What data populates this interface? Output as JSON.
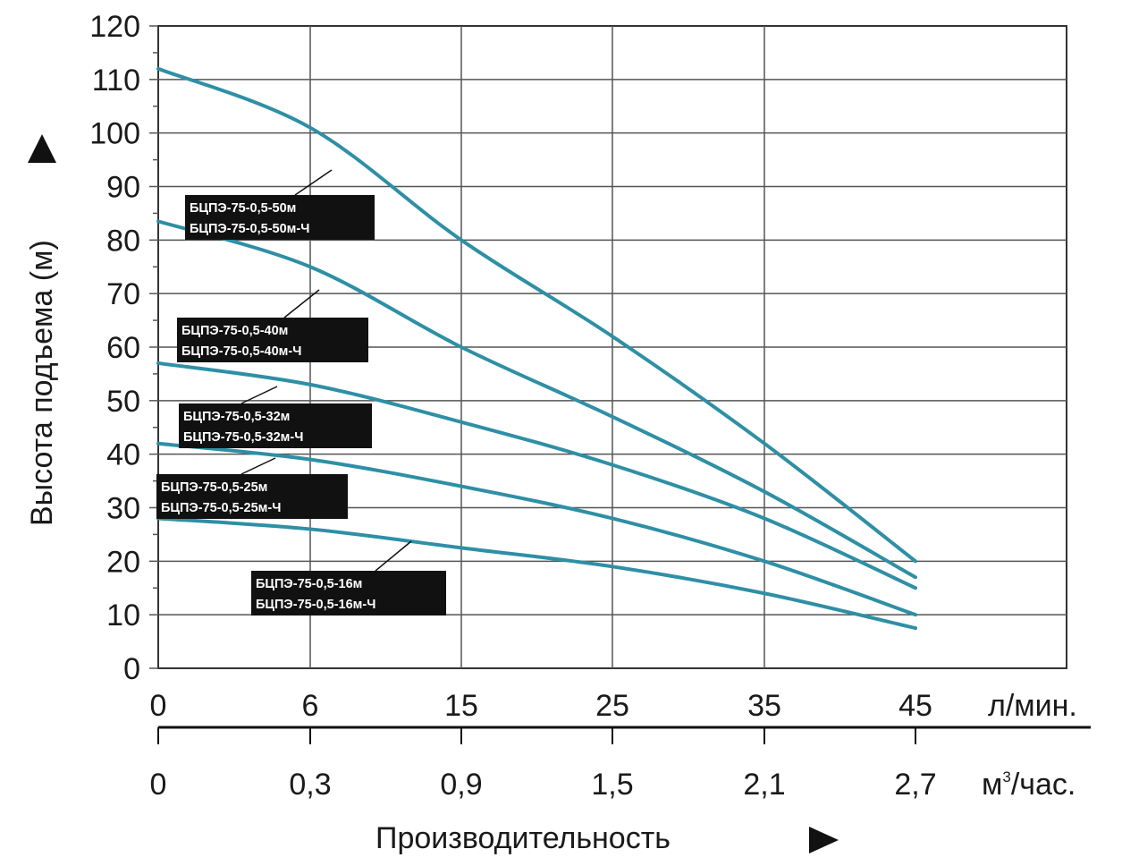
{
  "chart_data": {
    "type": "line",
    "ylabel": "Высота подъема (м)",
    "xlabel": "Производительность",
    "x_unit_primary": "л/мин.",
    "x_unit_secondary_base": "м",
    "x_unit_secondary_sup": "3",
    "x_unit_secondary_rest": "/час.",
    "x_ticks_primary": [
      "0",
      "6",
      "15",
      "25",
      "35",
      "45"
    ],
    "x_tick_values": [
      0,
      6,
      15,
      25,
      35,
      45
    ],
    "x_ticks_secondary": [
      "0",
      "0,3",
      "0,9",
      "1,5",
      "2,1",
      "2,7"
    ],
    "y_ticks": [
      "0",
      "10",
      "20",
      "30",
      "40",
      "50",
      "60",
      "70",
      "80",
      "90",
      "100",
      "110",
      "120"
    ],
    "ylim": [
      0,
      120
    ],
    "grid": true,
    "line_color": "#2e8fa5",
    "series": [
      {
        "name_line1": "БЦПЭ-75-0,5-50м",
        "name_line2": "БЦПЭ-75-0,5-50м-Ч",
        "x": [
          0,
          6,
          15,
          25,
          35,
          45
        ],
        "y": [
          112,
          101,
          80,
          62,
          42,
          20
        ]
      },
      {
        "name_line1": "БЦПЭ-75-0,5-40м",
        "name_line2": "БЦПЭ-75-0,5-40м-Ч",
        "x": [
          0,
          6,
          15,
          25,
          35,
          45
        ],
        "y": [
          83.5,
          75,
          60,
          47,
          33,
          17
        ]
      },
      {
        "name_line1": "БЦПЭ-75-0,5-32м",
        "name_line2": "БЦПЭ-75-0,5-32м-Ч",
        "x": [
          0,
          6,
          15,
          25,
          35,
          45
        ],
        "y": [
          57,
          53,
          46,
          38,
          28,
          15
        ]
      },
      {
        "name_line1": "БЦПЭ-75-0,5-25м",
        "name_line2": "БЦПЭ-75-0,5-25м-Ч",
        "x": [
          0,
          6,
          15,
          25,
          35,
          45
        ],
        "y": [
          42,
          39,
          34,
          28,
          20,
          10
        ]
      },
      {
        "name_line1": "БЦПЭ-75-0,5-16м",
        "name_line2": "БЦПЭ-75-0,5-16м-Ч",
        "x": [
          0,
          6,
          15,
          25,
          35,
          45
        ],
        "y": [
          28,
          26,
          22.5,
          19,
          14,
          7.5
        ]
      }
    ]
  }
}
